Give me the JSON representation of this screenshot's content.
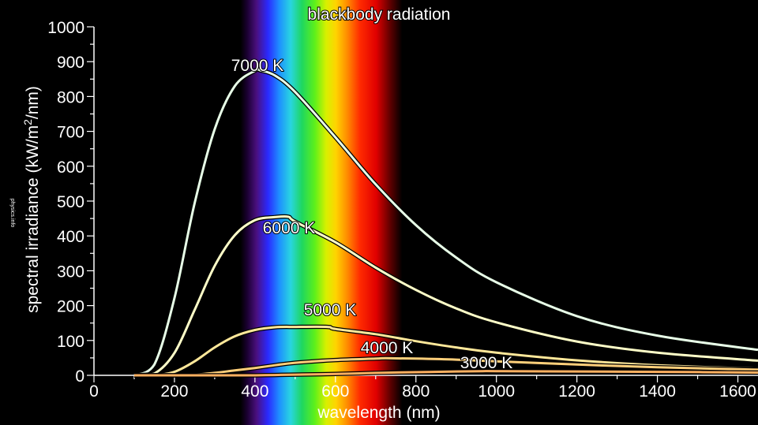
{
  "chart_data": {
    "type": "line",
    "title": "blackbody radiation",
    "xlabel": "wavelength (nm)",
    "ylabel": "spectral irradiance (kW/m²/nm)",
    "xlim": [
      0,
      1650
    ],
    "ylim": [
      0,
      1000
    ],
    "xticks": [
      0,
      200,
      400,
      600,
      800,
      1000,
      1200,
      1400,
      1600
    ],
    "yticks": [
      0,
      100,
      200,
      300,
      400,
      500,
      600,
      700,
      800,
      900,
      1000
    ],
    "grid": false,
    "legend": "none",
    "visible_spectrum_nm": [
      380,
      750
    ],
    "series": [
      {
        "name": "7000 K",
        "temperature_K": 7000,
        "color": "#e8ffe8",
        "peak": [
          414,
          875
        ],
        "x": [
          100,
          150,
          200,
          250,
          300,
          350,
          400,
          450,
          500,
          600,
          700,
          800,
          900,
          1000,
          1200,
          1400,
          1650
        ],
        "y": [
          0,
          31,
          221,
          493,
          706,
          830,
          874,
          860,
          813,
          683,
          548,
          431,
          338,
          267,
          170,
          114,
          73
        ]
      },
      {
        "name": "6000 K",
        "temperature_K": 6000,
        "color": "#ffffc8",
        "peak": [
          483,
          455
        ],
        "x": [
          100,
          150,
          200,
          250,
          300,
          350,
          400,
          450,
          500,
          600,
          700,
          800,
          900,
          1000,
          1200,
          1400,
          1650
        ],
        "y": [
          0,
          5,
          64,
          187,
          314,
          402,
          445,
          454,
          441,
          382,
          309,
          245,
          192,
          152,
          97,
          65,
          42
        ]
      },
      {
        "name": "5000 K",
        "temperature_K": 5000,
        "color": "#ffe89a",
        "peak": [
          580,
          139
        ],
        "x": [
          100,
          150,
          200,
          250,
          300,
          350,
          400,
          450,
          500,
          600,
          700,
          800,
          900,
          1000,
          1200,
          1400,
          1650
        ],
        "y": [
          0,
          0,
          10,
          40,
          80,
          112,
          130,
          138,
          139,
          133,
          118,
          98,
          80,
          65,
          43,
          29,
          19
        ]
      },
      {
        "name": "4000 K",
        "temperature_K": 4000,
        "color": "#ffcf7a",
        "peak": [
          725,
          49
        ],
        "x": [
          100,
          150,
          200,
          250,
          300,
          350,
          400,
          450,
          500,
          600,
          700,
          800,
          900,
          1000,
          1200,
          1400,
          1650
        ],
        "y": [
          0,
          0,
          0,
          2,
          7,
          14,
          21,
          29,
          36,
          44,
          48,
          48,
          45,
          40,
          31,
          23,
          16
        ]
      },
      {
        "name": "3000 K",
        "temperature_K": 3000,
        "color": "#ffb060",
        "peak": [
          966,
          12
        ],
        "x": [
          100,
          150,
          200,
          250,
          300,
          350,
          400,
          450,
          500,
          600,
          700,
          800,
          900,
          1000,
          1200,
          1400,
          1650
        ],
        "y": [
          0,
          0,
          0,
          0,
          0,
          0,
          0,
          1,
          2,
          4,
          7,
          9,
          11,
          12,
          11,
          10,
          8
        ]
      }
    ]
  },
  "watermark": "physics.info"
}
